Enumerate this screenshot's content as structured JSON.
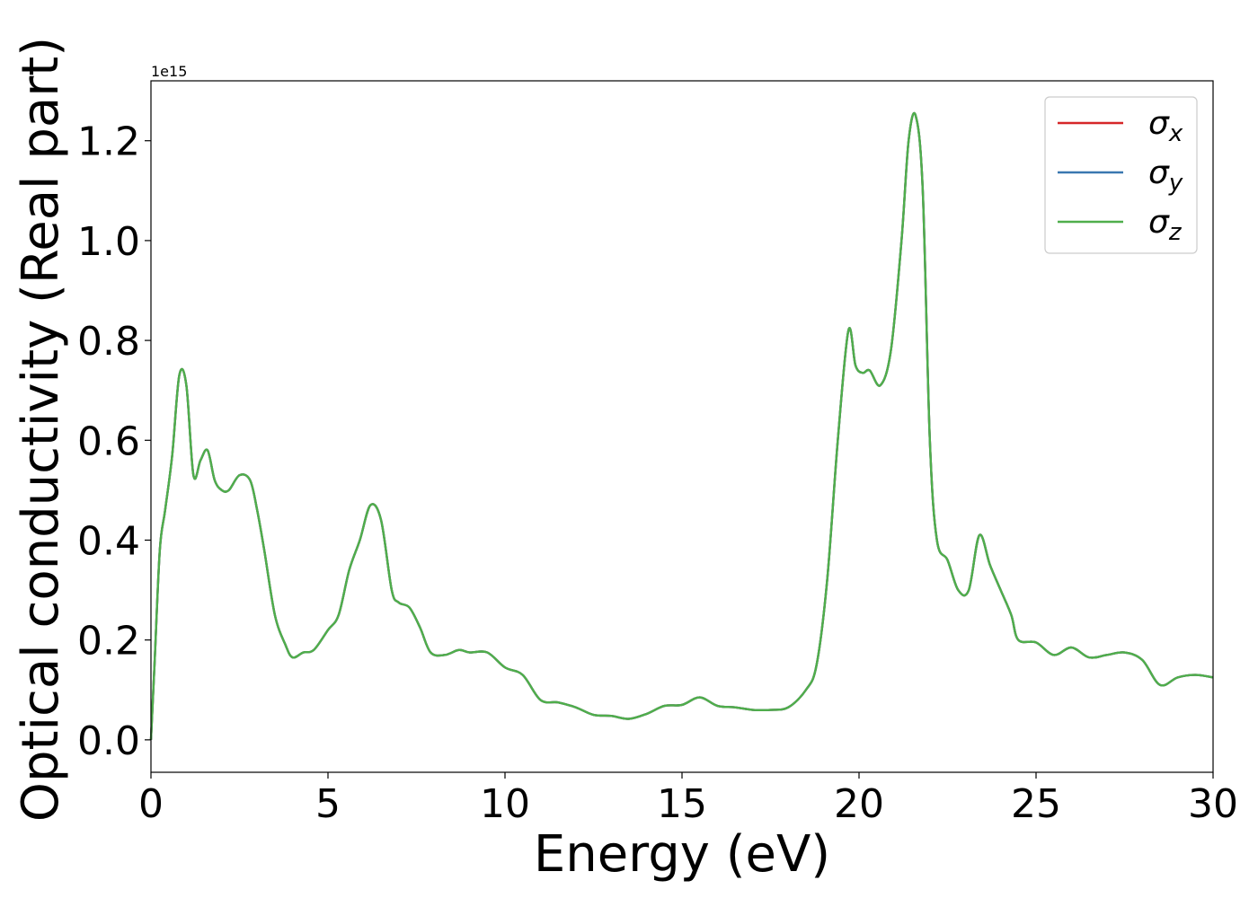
{
  "chart_data": {
    "type": "line",
    "title": "",
    "xlabel": "Energy (eV)",
    "ylabel": "Optical conductivity (Real part)",
    "offset_label": "1e15",
    "xlim": [
      0,
      30
    ],
    "ylim": [
      -0.065,
      1.32
    ],
    "xticks": [
      0,
      5,
      10,
      15,
      20,
      25,
      30
    ],
    "xtick_labels": [
      "0",
      "5",
      "10",
      "15",
      "20",
      "25",
      "30"
    ],
    "yticks": [
      0.0,
      0.2,
      0.4,
      0.6,
      0.8,
      1.0,
      1.2
    ],
    "ytick_labels": [
      "0.0",
      "0.2",
      "0.4",
      "0.6",
      "0.8",
      "1.0",
      "1.2"
    ],
    "grid": false,
    "legend_position": "top-right",
    "x": [
      0,
      0.1,
      0.25,
      0.4,
      0.6,
      0.8,
      1.0,
      1.2,
      1.4,
      1.6,
      1.8,
      2.0,
      2.2,
      2.5,
      2.8,
      3.0,
      3.2,
      3.5,
      3.8,
      4.0,
      4.3,
      4.6,
      5.0,
      5.3,
      5.6,
      5.9,
      6.2,
      6.5,
      6.8,
      7.0,
      7.3,
      7.6,
      7.9,
      8.3,
      8.7,
      9.0,
      9.5,
      10.0,
      10.5,
      11.0,
      11.5,
      12.0,
      12.5,
      13.0,
      13.5,
      14.0,
      14.5,
      15.0,
      15.5,
      16.0,
      16.5,
      17.0,
      17.5,
      18.0,
      18.5,
      18.8,
      19.1,
      19.4,
      19.7,
      19.9,
      20.1,
      20.3,
      20.6,
      20.9,
      21.2,
      21.4,
      21.6,
      21.8,
      22.0,
      22.2,
      22.5,
      22.8,
      23.1,
      23.4,
      23.7,
      24.0,
      24.3,
      24.5,
      25.0,
      25.5,
      26.0,
      26.5,
      27.0,
      27.5,
      28.0,
      28.5,
      29.0,
      29.5,
      30.0
    ],
    "y_common": [
      0.0,
      0.15,
      0.38,
      0.46,
      0.57,
      0.73,
      0.71,
      0.53,
      0.56,
      0.58,
      0.52,
      0.5,
      0.5,
      0.53,
      0.52,
      0.46,
      0.38,
      0.25,
      0.19,
      0.165,
      0.175,
      0.18,
      0.22,
      0.25,
      0.34,
      0.4,
      0.47,
      0.44,
      0.3,
      0.275,
      0.265,
      0.225,
      0.175,
      0.17,
      0.18,
      0.175,
      0.175,
      0.145,
      0.13,
      0.08,
      0.075,
      0.065,
      0.05,
      0.048,
      0.042,
      0.052,
      0.068,
      0.07,
      0.085,
      0.068,
      0.065,
      0.06,
      0.06,
      0.065,
      0.1,
      0.15,
      0.32,
      0.6,
      0.82,
      0.75,
      0.735,
      0.74,
      0.71,
      0.78,
      1.0,
      1.2,
      1.25,
      1.1,
      0.6,
      0.4,
      0.36,
      0.3,
      0.3,
      0.41,
      0.35,
      0.3,
      0.25,
      0.2,
      0.195,
      0.17,
      0.185,
      0.165,
      0.17,
      0.175,
      0.16,
      0.11,
      0.125,
      0.13,
      0.125
    ],
    "series": [
      {
        "name": "σx",
        "color": "#d62728"
      },
      {
        "name": "σy",
        "color": "#3a78b0"
      },
      {
        "name": "σz",
        "color": "#4fae4b"
      }
    ]
  }
}
